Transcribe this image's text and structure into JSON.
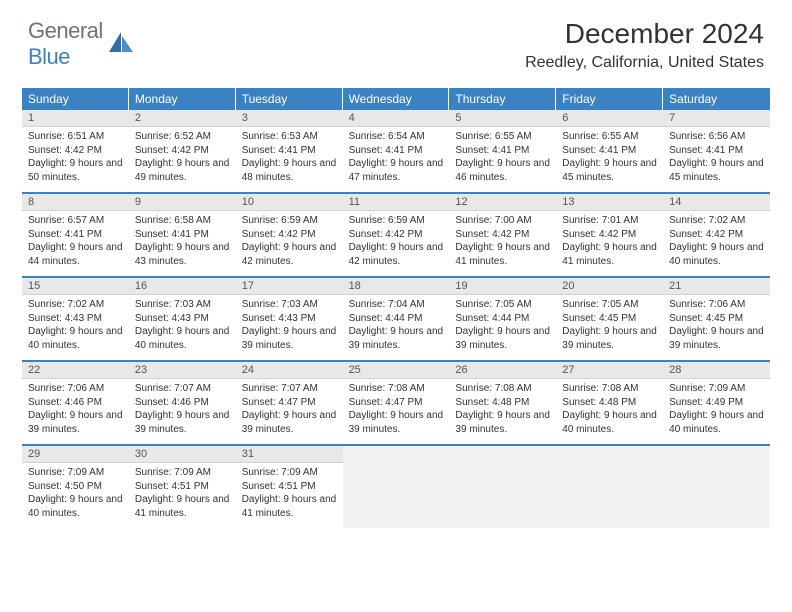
{
  "logo": {
    "part1": "General",
    "part2": "Blue"
  },
  "title": "December 2024",
  "location": "Reedley, California, United States",
  "colors": {
    "header_bg": "#3b82c4",
    "header_text": "#ffffff",
    "daynum_bg": "#e8e8e8",
    "border": "#3b82c4",
    "text": "#333333",
    "empty_bg": "#f2f2f2"
  },
  "day_headers": [
    "Sunday",
    "Monday",
    "Tuesday",
    "Wednesday",
    "Thursday",
    "Friday",
    "Saturday"
  ],
  "days": [
    {
      "n": 1,
      "sunrise": "6:51 AM",
      "sunset": "4:42 PM",
      "dl": "9 hours and 50 minutes."
    },
    {
      "n": 2,
      "sunrise": "6:52 AM",
      "sunset": "4:42 PM",
      "dl": "9 hours and 49 minutes."
    },
    {
      "n": 3,
      "sunrise": "6:53 AM",
      "sunset": "4:41 PM",
      "dl": "9 hours and 48 minutes."
    },
    {
      "n": 4,
      "sunrise": "6:54 AM",
      "sunset": "4:41 PM",
      "dl": "9 hours and 47 minutes."
    },
    {
      "n": 5,
      "sunrise": "6:55 AM",
      "sunset": "4:41 PM",
      "dl": "9 hours and 46 minutes."
    },
    {
      "n": 6,
      "sunrise": "6:55 AM",
      "sunset": "4:41 PM",
      "dl": "9 hours and 45 minutes."
    },
    {
      "n": 7,
      "sunrise": "6:56 AM",
      "sunset": "4:41 PM",
      "dl": "9 hours and 45 minutes."
    },
    {
      "n": 8,
      "sunrise": "6:57 AM",
      "sunset": "4:41 PM",
      "dl": "9 hours and 44 minutes."
    },
    {
      "n": 9,
      "sunrise": "6:58 AM",
      "sunset": "4:41 PM",
      "dl": "9 hours and 43 minutes."
    },
    {
      "n": 10,
      "sunrise": "6:59 AM",
      "sunset": "4:42 PM",
      "dl": "9 hours and 42 minutes."
    },
    {
      "n": 11,
      "sunrise": "6:59 AM",
      "sunset": "4:42 PM",
      "dl": "9 hours and 42 minutes."
    },
    {
      "n": 12,
      "sunrise": "7:00 AM",
      "sunset": "4:42 PM",
      "dl": "9 hours and 41 minutes."
    },
    {
      "n": 13,
      "sunrise": "7:01 AM",
      "sunset": "4:42 PM",
      "dl": "9 hours and 41 minutes."
    },
    {
      "n": 14,
      "sunrise": "7:02 AM",
      "sunset": "4:42 PM",
      "dl": "9 hours and 40 minutes."
    },
    {
      "n": 15,
      "sunrise": "7:02 AM",
      "sunset": "4:43 PM",
      "dl": "9 hours and 40 minutes."
    },
    {
      "n": 16,
      "sunrise": "7:03 AM",
      "sunset": "4:43 PM",
      "dl": "9 hours and 40 minutes."
    },
    {
      "n": 17,
      "sunrise": "7:03 AM",
      "sunset": "4:43 PM",
      "dl": "9 hours and 39 minutes."
    },
    {
      "n": 18,
      "sunrise": "7:04 AM",
      "sunset": "4:44 PM",
      "dl": "9 hours and 39 minutes."
    },
    {
      "n": 19,
      "sunrise": "7:05 AM",
      "sunset": "4:44 PM",
      "dl": "9 hours and 39 minutes."
    },
    {
      "n": 20,
      "sunrise": "7:05 AM",
      "sunset": "4:45 PM",
      "dl": "9 hours and 39 minutes."
    },
    {
      "n": 21,
      "sunrise": "7:06 AM",
      "sunset": "4:45 PM",
      "dl": "9 hours and 39 minutes."
    },
    {
      "n": 22,
      "sunrise": "7:06 AM",
      "sunset": "4:46 PM",
      "dl": "9 hours and 39 minutes."
    },
    {
      "n": 23,
      "sunrise": "7:07 AM",
      "sunset": "4:46 PM",
      "dl": "9 hours and 39 minutes."
    },
    {
      "n": 24,
      "sunrise": "7:07 AM",
      "sunset": "4:47 PM",
      "dl": "9 hours and 39 minutes."
    },
    {
      "n": 25,
      "sunrise": "7:08 AM",
      "sunset": "4:47 PM",
      "dl": "9 hours and 39 minutes."
    },
    {
      "n": 26,
      "sunrise": "7:08 AM",
      "sunset": "4:48 PM",
      "dl": "9 hours and 39 minutes."
    },
    {
      "n": 27,
      "sunrise": "7:08 AM",
      "sunset": "4:48 PM",
      "dl": "9 hours and 40 minutes."
    },
    {
      "n": 28,
      "sunrise": "7:09 AM",
      "sunset": "4:49 PM",
      "dl": "9 hours and 40 minutes."
    },
    {
      "n": 29,
      "sunrise": "7:09 AM",
      "sunset": "4:50 PM",
      "dl": "9 hours and 40 minutes."
    },
    {
      "n": 30,
      "sunrise": "7:09 AM",
      "sunset": "4:51 PM",
      "dl": "9 hours and 41 minutes."
    },
    {
      "n": 31,
      "sunrise": "7:09 AM",
      "sunset": "4:51 PM",
      "dl": "9 hours and 41 minutes."
    }
  ],
  "labels": {
    "sunrise": "Sunrise:",
    "sunset": "Sunset:",
    "daylight": "Daylight:"
  },
  "layout": {
    "first_day_offset": 0,
    "total_cells": 35
  }
}
